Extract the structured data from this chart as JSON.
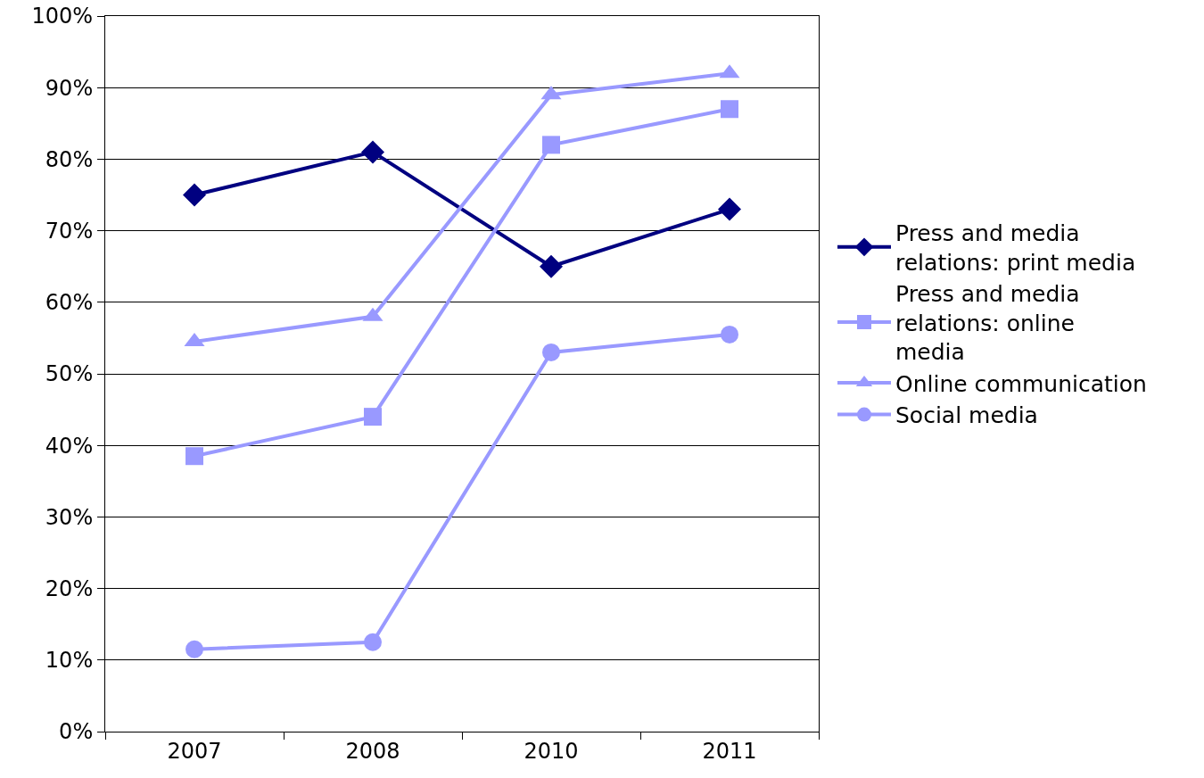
{
  "chart_data": {
    "type": "line",
    "categories": [
      "2007",
      "2008",
      "2010",
      "2011"
    ],
    "series": [
      {
        "name": "Press and media relations: print media",
        "color": "#000080",
        "marker": "diamond",
        "values": [
          75,
          81,
          65,
          73
        ]
      },
      {
        "name": "Press and media relations: online media",
        "color": "#9999ff",
        "marker": "square",
        "values": [
          38.5,
          44,
          82,
          87
        ]
      },
      {
        "name": "Online communication",
        "color": "#9999ff",
        "marker": "triangle",
        "values": [
          54.5,
          58,
          89,
          92
        ]
      },
      {
        "name": "Social media",
        "color": "#9999ff",
        "marker": "circle",
        "values": [
          11.5,
          12.5,
          53,
          55.5
        ]
      }
    ],
    "ylim": [
      0,
      100
    ],
    "yticks": [
      {
        "value": 0,
        "label": "0%"
      },
      {
        "value": 10,
        "label": "10%"
      },
      {
        "value": 20,
        "label": "20%"
      },
      {
        "value": 30,
        "label": "30%"
      },
      {
        "value": 40,
        "label": "40%"
      },
      {
        "value": 50,
        "label": "50%"
      },
      {
        "value": 60,
        "label": "60%"
      },
      {
        "value": 70,
        "label": "70%"
      },
      {
        "value": 80,
        "label": "80%"
      },
      {
        "value": 90,
        "label": "90%"
      },
      {
        "value": 100,
        "label": "100%"
      }
    ],
    "grid": "y",
    "legend": "right",
    "line_style": "solid"
  }
}
